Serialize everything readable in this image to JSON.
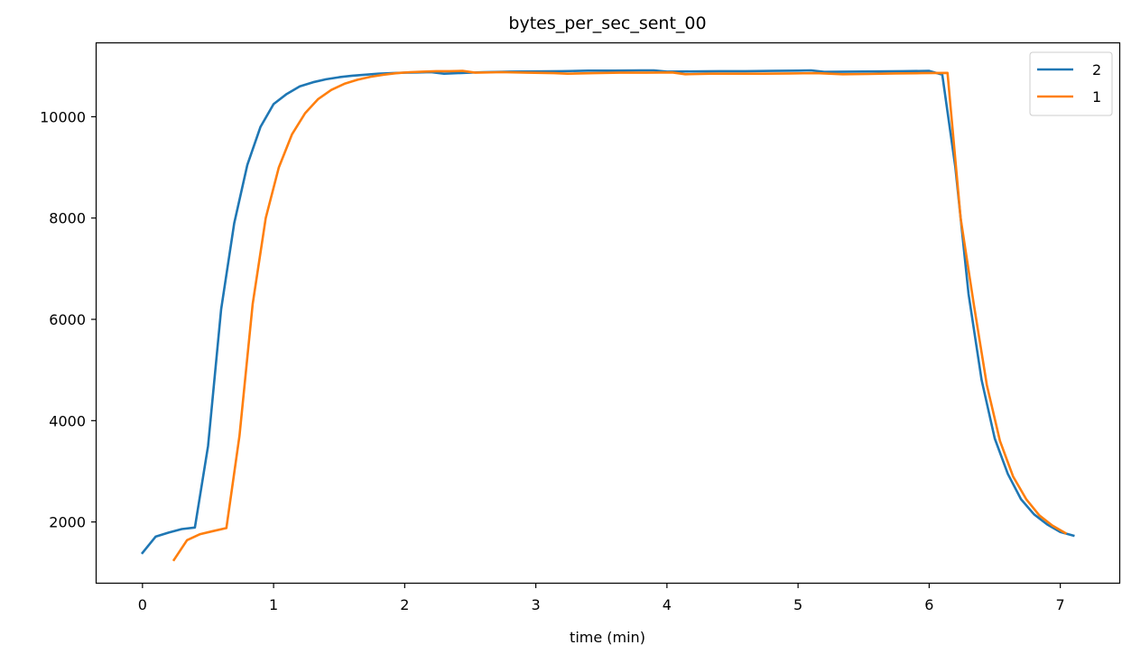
{
  "chart_data": {
    "type": "line",
    "title": "bytes_per_sec_sent_00",
    "xlabel": "time (min)",
    "ylabel": "",
    "xlim": [
      -0.35,
      7.45
    ],
    "ylim": [
      800,
      11450
    ],
    "xticks": [
      0,
      1,
      2,
      3,
      4,
      5,
      6,
      7
    ],
    "xtick_labels": [
      "0",
      "1",
      "2",
      "3",
      "4",
      "5",
      "6",
      "7"
    ],
    "yticks": [
      2000,
      4000,
      6000,
      8000,
      10000
    ],
    "ytick_labels": [
      "2000",
      "4000",
      "6000",
      "8000",
      "10000"
    ],
    "grid": false,
    "legend_position": "top-right",
    "series": [
      {
        "name": "2",
        "color": "#1f77b4",
        "points": [
          [
            0.0,
            1390
          ],
          [
            0.1,
            1710
          ],
          [
            0.2,
            1790
          ],
          [
            0.3,
            1860
          ],
          [
            0.4,
            1890
          ],
          [
            0.5,
            3500
          ],
          [
            0.6,
            6200
          ],
          [
            0.7,
            7900
          ],
          [
            0.8,
            9050
          ],
          [
            0.9,
            9800
          ],
          [
            1.0,
            10250
          ],
          [
            1.1,
            10450
          ],
          [
            1.2,
            10600
          ],
          [
            1.3,
            10680
          ],
          [
            1.4,
            10740
          ],
          [
            1.5,
            10780
          ],
          [
            1.6,
            10810
          ],
          [
            1.7,
            10830
          ],
          [
            1.8,
            10850
          ],
          [
            1.9,
            10860
          ],
          [
            2.0,
            10870
          ],
          [
            2.1,
            10875
          ],
          [
            2.2,
            10880
          ],
          [
            2.3,
            10850
          ],
          [
            2.4,
            10860
          ],
          [
            2.6,
            10880
          ],
          [
            2.8,
            10890
          ],
          [
            3.0,
            10895
          ],
          [
            3.2,
            10900
          ],
          [
            3.4,
            10910
          ],
          [
            3.6,
            10910
          ],
          [
            3.8,
            10915
          ],
          [
            3.9,
            10915
          ],
          [
            4.0,
            10890
          ],
          [
            4.2,
            10895
          ],
          [
            4.4,
            10900
          ],
          [
            4.6,
            10900
          ],
          [
            4.8,
            10905
          ],
          [
            5.0,
            10910
          ],
          [
            5.1,
            10915
          ],
          [
            5.2,
            10885
          ],
          [
            5.4,
            10890
          ],
          [
            5.6,
            10895
          ],
          [
            5.8,
            10900
          ],
          [
            6.0,
            10905
          ],
          [
            6.1,
            10830
          ],
          [
            6.2,
            9000
          ],
          [
            6.3,
            6500
          ],
          [
            6.4,
            4800
          ],
          [
            6.5,
            3650
          ],
          [
            6.6,
            2950
          ],
          [
            6.7,
            2450
          ],
          [
            6.8,
            2150
          ],
          [
            6.9,
            1950
          ],
          [
            7.0,
            1800
          ],
          [
            7.1,
            1730
          ]
        ]
      },
      {
        "name": "1",
        "color": "#ff7f0e",
        "points": [
          [
            0.24,
            1250
          ],
          [
            0.34,
            1640
          ],
          [
            0.44,
            1760
          ],
          [
            0.54,
            1820
          ],
          [
            0.64,
            1880
          ],
          [
            0.74,
            3700
          ],
          [
            0.84,
            6300
          ],
          [
            0.94,
            8000
          ],
          [
            1.04,
            9000
          ],
          [
            1.14,
            9650
          ],
          [
            1.24,
            10070
          ],
          [
            1.34,
            10350
          ],
          [
            1.44,
            10530
          ],
          [
            1.54,
            10650
          ],
          [
            1.64,
            10730
          ],
          [
            1.74,
            10790
          ],
          [
            1.84,
            10830
          ],
          [
            1.94,
            10860
          ],
          [
            2.04,
            10880
          ],
          [
            2.14,
            10890
          ],
          [
            2.24,
            10900
          ],
          [
            2.34,
            10900
          ],
          [
            2.44,
            10905
          ],
          [
            2.54,
            10870
          ],
          [
            2.74,
            10880
          ],
          [
            2.94,
            10870
          ],
          [
            3.14,
            10860
          ],
          [
            3.24,
            10850
          ],
          [
            3.44,
            10860
          ],
          [
            3.64,
            10870
          ],
          [
            3.84,
            10870
          ],
          [
            4.04,
            10875
          ],
          [
            4.14,
            10840
          ],
          [
            4.34,
            10850
          ],
          [
            4.54,
            10850
          ],
          [
            4.74,
            10850
          ],
          [
            4.94,
            10855
          ],
          [
            5.14,
            10860
          ],
          [
            5.34,
            10840
          ],
          [
            5.54,
            10845
          ],
          [
            5.74,
            10855
          ],
          [
            5.94,
            10860
          ],
          [
            6.14,
            10865
          ],
          [
            6.24,
            8000
          ],
          [
            6.34,
            6300
          ],
          [
            6.44,
            4700
          ],
          [
            6.54,
            3600
          ],
          [
            6.64,
            2900
          ],
          [
            6.74,
            2450
          ],
          [
            6.84,
            2130
          ],
          [
            6.94,
            1930
          ],
          [
            7.04,
            1780
          ]
        ]
      }
    ]
  }
}
